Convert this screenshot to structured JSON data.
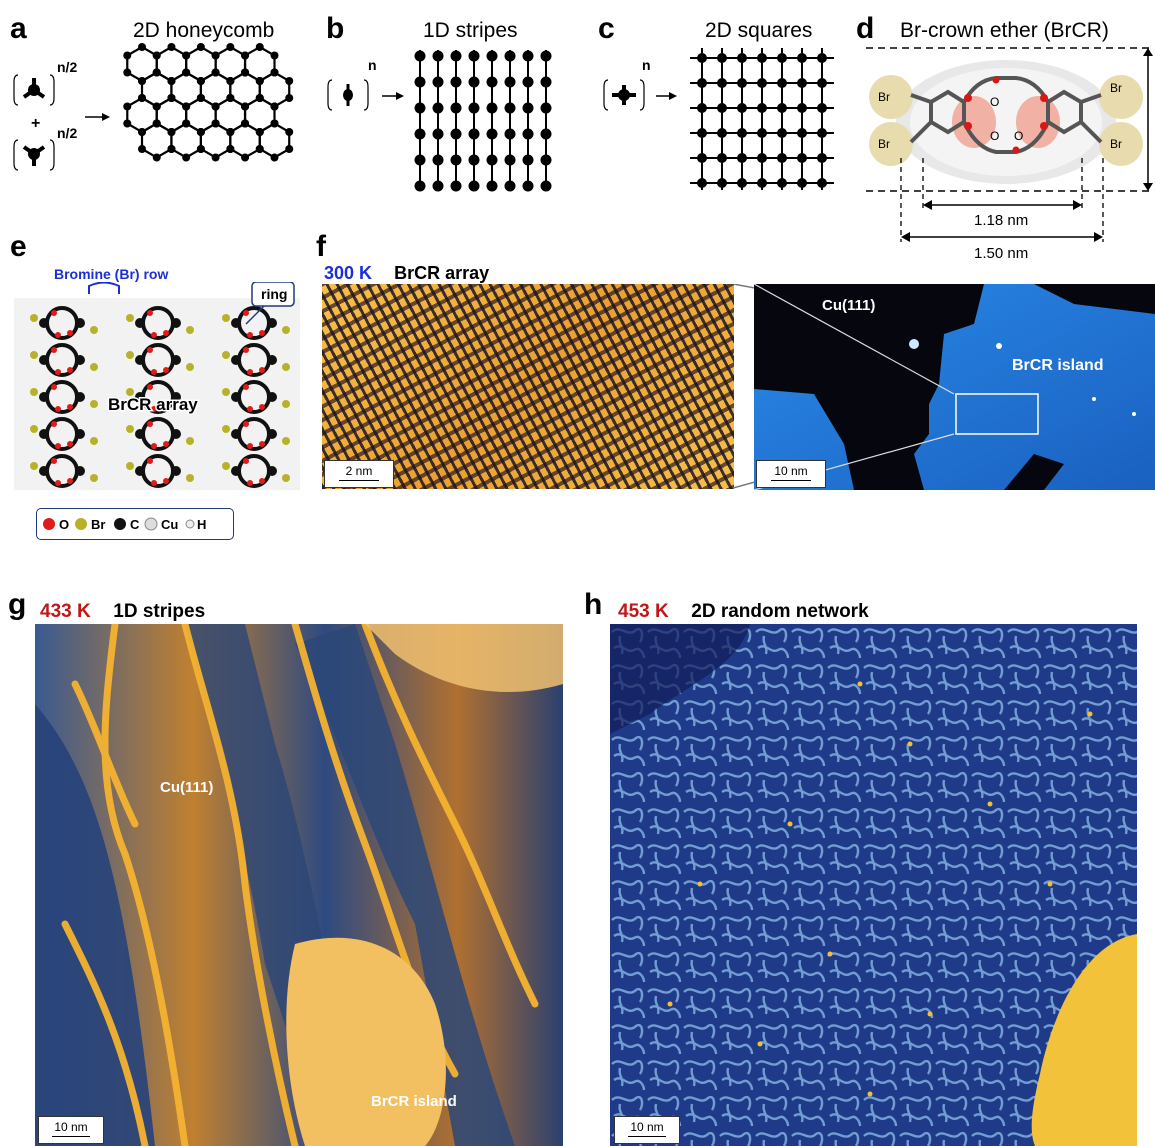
{
  "panels": {
    "a": {
      "label": "a",
      "title": "2D honeycomb",
      "sup1": "n/2",
      "sup2": "n/2",
      "plus": "+"
    },
    "b": {
      "label": "b",
      "title": "1D stripes",
      "sup": "n"
    },
    "c": {
      "label": "c",
      "title": "2D squares",
      "sup": "n"
    },
    "d": {
      "label": "d",
      "title": "Br-crown ether (BrCR)",
      "dim_inner": "1.18 nm",
      "dim_outer": "1.50 nm",
      "atom_br": "Br",
      "atom_o": "O"
    },
    "e": {
      "label": "e",
      "br_row": "Bromine (Br) row",
      "ring": "ring",
      "array_label": "BrCR array",
      "legend": [
        "O",
        "Br",
        "C",
        "Cu",
        "H"
      ]
    },
    "f": {
      "label": "f",
      "temp": "300 K",
      "title": "BrCR array",
      "scale_left": "2 nm",
      "cu_label": "Cu(111)",
      "island_label": "BrCR island",
      "scale_right": "10 nm"
    },
    "g": {
      "label": "g",
      "temp": "433 K",
      "title": "1D stripes",
      "cu_label": "Cu(111)",
      "island_label": "BrCR\nisland",
      "scale": "10 nm"
    },
    "h": {
      "label": "h",
      "temp": "453 K",
      "title": "2D random network",
      "scale": "10 nm"
    }
  },
  "colors": {
    "oxygen": "#e21a1a",
    "bromine": "#b8b12a",
    "carbon": "#111111",
    "copper": "#d8d8d8",
    "stm_blue": "#2a3f9e",
    "stm_gold": "#f2b233"
  }
}
